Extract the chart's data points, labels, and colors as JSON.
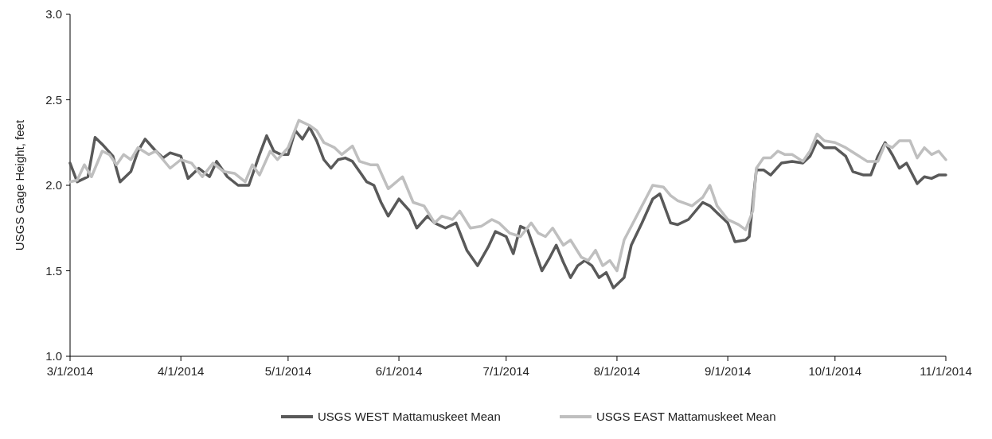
{
  "chart_data": {
    "type": "line",
    "ylabel": "USGS Gage Height, feet",
    "legend": "bottom",
    "grid": false,
    "line_style": "solid",
    "marker": "none",
    "xlim": [
      "2014-03-01",
      "2014-11-01"
    ],
    "xticks": [
      {
        "value": "2014-03-01",
        "label": "3/1/2014"
      },
      {
        "value": "2014-04-01",
        "label": "4/1/2014"
      },
      {
        "value": "2014-05-01",
        "label": "5/1/2014"
      },
      {
        "value": "2014-06-01",
        "label": "6/1/2014"
      },
      {
        "value": "2014-07-01",
        "label": "7/1/2014"
      },
      {
        "value": "2014-08-01",
        "label": "8/1/2014"
      },
      {
        "value": "2014-09-01",
        "label": "9/1/2014"
      },
      {
        "value": "2014-10-01",
        "label": "10/1/2014"
      },
      {
        "value": "2014-11-01",
        "label": "11/1/2014"
      }
    ],
    "ylim": [
      1,
      3
    ],
    "yticks": [
      {
        "value": 1,
        "label": "1.0"
      },
      1.5,
      {
        "value": 2,
        "label": "2.0"
      },
      2.5,
      {
        "value": 3,
        "label": "3.0"
      }
    ],
    "series": [
      {
        "name": "USGS WEST Mattamuskeet Mean",
        "color": "#595959",
        "x": [
          "2014-03-01",
          "2014-03-03",
          "2014-03-06",
          "2014-03-08",
          "2014-03-10",
          "2014-03-13",
          "2014-03-15",
          "2014-03-18",
          "2014-03-20",
          "2014-03-22",
          "2014-03-25",
          "2014-03-27",
          "2014-03-29",
          "2014-04-01",
          "2014-04-03",
          "2014-04-06",
          "2014-04-09",
          "2014-04-11",
          "2014-04-14",
          "2014-04-17",
          "2014-04-20",
          "2014-04-23",
          "2014-04-25",
          "2014-04-27",
          "2014-04-29",
          "2014-05-01",
          "2014-05-03",
          "2014-05-05",
          "2014-05-07",
          "2014-05-09",
          "2014-05-11",
          "2014-05-13",
          "2014-05-15",
          "2014-05-17",
          "2014-05-19",
          "2014-05-21",
          "2014-05-23",
          "2014-05-25",
          "2014-05-27",
          "2014-05-29",
          "2014-06-01",
          "2014-06-04",
          "2014-06-06",
          "2014-06-09",
          "2014-06-11",
          "2014-06-14",
          "2014-06-17",
          "2014-06-20",
          "2014-06-23",
          "2014-06-26",
          "2014-06-28",
          "2014-07-01",
          "2014-07-03",
          "2014-07-05",
          "2014-07-07",
          "2014-07-09",
          "2014-07-11",
          "2014-07-13",
          "2014-07-15",
          "2014-07-17",
          "2014-07-19",
          "2014-07-21",
          "2014-07-23",
          "2014-07-25",
          "2014-07-27",
          "2014-07-29",
          "2014-07-31",
          "2014-08-01",
          "2014-08-03",
          "2014-08-05",
          "2014-08-08",
          "2014-08-11",
          "2014-08-13",
          "2014-08-16",
          "2014-08-18",
          "2014-08-21",
          "2014-08-25",
          "2014-08-27",
          "2014-08-29",
          "2014-09-01",
          "2014-09-03",
          "2014-09-06",
          "2014-09-07",
          "2014-09-09",
          "2014-09-11",
          "2014-09-13",
          "2014-09-16",
          "2014-09-19",
          "2014-09-22",
          "2014-09-24",
          "2014-09-26",
          "2014-09-28",
          "2014-10-01",
          "2014-10-04",
          "2014-10-06",
          "2014-10-09",
          "2014-10-11",
          "2014-10-13",
          "2014-10-15",
          "2014-10-17",
          "2014-10-19",
          "2014-10-21",
          "2014-10-24",
          "2014-10-26",
          "2014-10-28",
          "2014-10-30",
          "2014-11-01"
        ],
        "values": [
          2.13,
          2.02,
          2.05,
          2.28,
          2.24,
          2.17,
          2.02,
          2.08,
          2.2,
          2.27,
          2.2,
          2.16,
          2.19,
          2.17,
          2.04,
          2.1,
          2.05,
          2.14,
          2.05,
          2.0,
          2.0,
          2.18,
          2.29,
          2.2,
          2.18,
          2.18,
          2.32,
          2.27,
          2.34,
          2.26,
          2.15,
          2.1,
          2.15,
          2.16,
          2.14,
          2.08,
          2.02,
          2.0,
          1.9,
          1.82,
          1.92,
          1.85,
          1.75,
          1.82,
          1.78,
          1.75,
          1.78,
          1.62,
          1.53,
          1.64,
          1.73,
          1.7,
          1.6,
          1.76,
          1.74,
          1.62,
          1.5,
          1.57,
          1.65,
          1.55,
          1.46,
          1.53,
          1.56,
          1.53,
          1.46,
          1.49,
          1.4,
          1.42,
          1.46,
          1.65,
          1.78,
          1.92,
          1.95,
          1.78,
          1.77,
          1.8,
          1.9,
          1.88,
          1.84,
          1.78,
          1.67,
          1.68,
          1.7,
          2.09,
          2.09,
          2.06,
          2.13,
          2.14,
          2.13,
          2.17,
          2.26,
          2.22,
          2.22,
          2.17,
          2.08,
          2.06,
          2.06,
          2.17,
          2.25,
          2.18,
          2.1,
          2.13,
          2.01,
          2.05,
          2.04,
          2.06,
          2.06
        ]
      },
      {
        "name": "USGS EAST Mattamuskeet Mean",
        "color": "#bfbfbf",
        "x": [
          "2014-03-01",
          "2014-03-03",
          "2014-03-05",
          "2014-03-07",
          "2014-03-10",
          "2014-03-12",
          "2014-03-14",
          "2014-03-16",
          "2014-03-18",
          "2014-03-20",
          "2014-03-23",
          "2014-03-25",
          "2014-03-27",
          "2014-03-29",
          "2014-04-01",
          "2014-04-04",
          "2014-04-07",
          "2014-04-10",
          "2014-04-13",
          "2014-04-16",
          "2014-04-19",
          "2014-04-21",
          "2014-04-23",
          "2014-04-26",
          "2014-04-28",
          "2014-05-01",
          "2014-05-04",
          "2014-05-07",
          "2014-05-09",
          "2014-05-11",
          "2014-05-14",
          "2014-05-16",
          "2014-05-19",
          "2014-05-21",
          "2014-05-24",
          "2014-05-26",
          "2014-05-29",
          "2014-06-02",
          "2014-06-05",
          "2014-06-08",
          "2014-06-11",
          "2014-06-13",
          "2014-06-16",
          "2014-06-18",
          "2014-06-21",
          "2014-06-24",
          "2014-06-27",
          "2014-06-29",
          "2014-07-02",
          "2014-07-05",
          "2014-07-08",
          "2014-07-10",
          "2014-07-12",
          "2014-07-14",
          "2014-07-17",
          "2014-07-19",
          "2014-07-22",
          "2014-07-24",
          "2014-07-26",
          "2014-07-28",
          "2014-07-30",
          "2014-08-01",
          "2014-08-03",
          "2014-08-06",
          "2014-08-09",
          "2014-08-11",
          "2014-08-14",
          "2014-08-16",
          "2014-08-18",
          "2014-08-22",
          "2014-08-25",
          "2014-08-27",
          "2014-08-29",
          "2014-09-01",
          "2014-09-04",
          "2014-09-06",
          "2014-09-08",
          "2014-09-09",
          "2014-09-11",
          "2014-09-13",
          "2014-09-15",
          "2014-09-17",
          "2014-09-19",
          "2014-09-22",
          "2014-09-24",
          "2014-09-26",
          "2014-09-28",
          "2014-10-01",
          "2014-10-04",
          "2014-10-07",
          "2014-10-10",
          "2014-10-13",
          "2014-10-15",
          "2014-10-17",
          "2014-10-19",
          "2014-10-22",
          "2014-10-24",
          "2014-10-26",
          "2014-10-28",
          "2014-10-30",
          "2014-11-01"
        ],
        "values": [
          2.02,
          2.03,
          2.12,
          2.05,
          2.2,
          2.18,
          2.12,
          2.18,
          2.15,
          2.22,
          2.18,
          2.2,
          2.15,
          2.1,
          2.15,
          2.13,
          2.05,
          2.13,
          2.08,
          2.07,
          2.02,
          2.12,
          2.06,
          2.2,
          2.15,
          2.22,
          2.38,
          2.35,
          2.32,
          2.25,
          2.22,
          2.18,
          2.23,
          2.14,
          2.12,
          2.12,
          1.98,
          2.05,
          1.9,
          1.88,
          1.78,
          1.82,
          1.8,
          1.85,
          1.75,
          1.76,
          1.8,
          1.78,
          1.72,
          1.7,
          1.78,
          1.72,
          1.7,
          1.75,
          1.65,
          1.68,
          1.58,
          1.56,
          1.62,
          1.53,
          1.56,
          1.5,
          1.68,
          1.8,
          1.92,
          2.0,
          1.99,
          1.94,
          1.91,
          1.88,
          1.93,
          2.0,
          1.88,
          1.8,
          1.77,
          1.74,
          1.85,
          2.1,
          2.16,
          2.16,
          2.2,
          2.18,
          2.18,
          2.14,
          2.2,
          2.3,
          2.26,
          2.25,
          2.22,
          2.18,
          2.14,
          2.14,
          2.24,
          2.22,
          2.26,
          2.26,
          2.16,
          2.22,
          2.18,
          2.2,
          2.15
        ]
      }
    ]
  }
}
